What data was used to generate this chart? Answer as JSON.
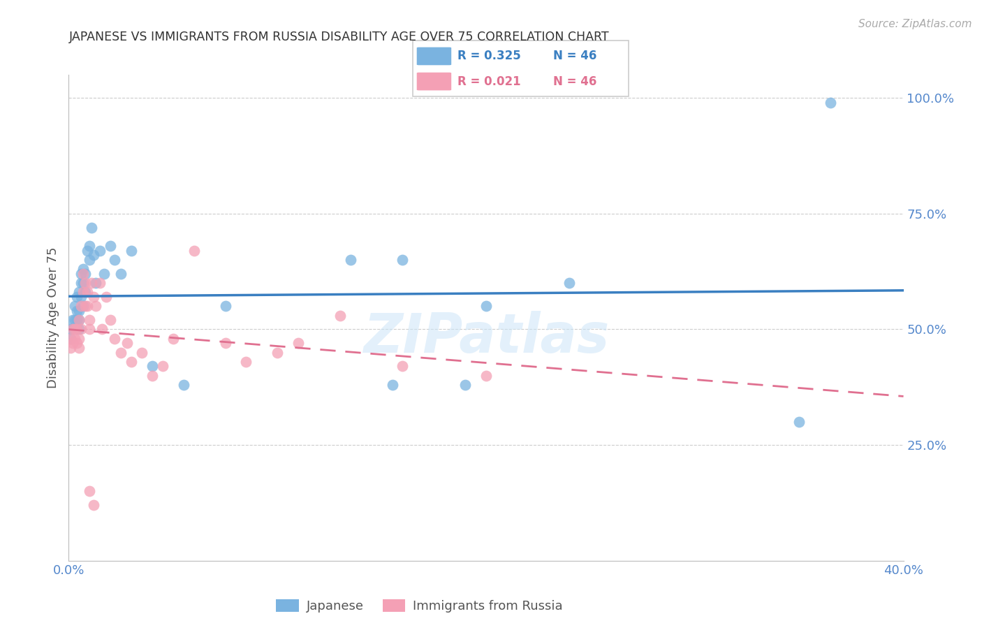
{
  "title": "JAPANESE VS IMMIGRANTS FROM RUSSIA DISABILITY AGE OVER 75 CORRELATION CHART",
  "source": "Source: ZipAtlas.com",
  "ylabel": "Disability Age Over 75",
  "xlim": [
    0.0,
    0.4
  ],
  "ylim": [
    0.0,
    1.05
  ],
  "yticks": [
    0.25,
    0.5,
    0.75,
    1.0
  ],
  "ytick_labels": [
    "25.0%",
    "50.0%",
    "75.0%",
    "100.0%"
  ],
  "xticks": [
    0.0,
    0.05,
    0.1,
    0.15,
    0.2,
    0.25,
    0.3,
    0.35,
    0.4
  ],
  "xtick_labels": [
    "0.0%",
    "",
    "",
    "",
    "",
    "",
    "",
    "",
    "40.0%"
  ],
  "legend_blue_r": "0.325",
  "legend_blue_n": "46",
  "legend_pink_r": "0.021",
  "legend_pink_n": "46",
  "blue_color": "#7ab3e0",
  "pink_color": "#f4a0b5",
  "line_blue": "#3a7fc1",
  "line_pink": "#e07090",
  "title_color": "#333333",
  "axis_label_color": "#555555",
  "tick_color": "#5588cc",
  "watermark": "ZIPatlas",
  "japanese_x": [
    0.001,
    0.001,
    0.002,
    0.002,
    0.003,
    0.003,
    0.003,
    0.004,
    0.004,
    0.004,
    0.004,
    0.005,
    0.005,
    0.005,
    0.005,
    0.006,
    0.006,
    0.006,
    0.007,
    0.007,
    0.007,
    0.008,
    0.008,
    0.009,
    0.01,
    0.01,
    0.011,
    0.012,
    0.013,
    0.015,
    0.017,
    0.02,
    0.022,
    0.025,
    0.03,
    0.04,
    0.055,
    0.075,
    0.16,
    0.2,
    0.24,
    0.19,
    0.155,
    0.135,
    0.35,
    0.365
  ],
  "japanese_y": [
    0.48,
    0.5,
    0.5,
    0.52,
    0.5,
    0.52,
    0.55,
    0.5,
    0.52,
    0.54,
    0.57,
    0.5,
    0.52,
    0.54,
    0.58,
    0.57,
    0.6,
    0.62,
    0.55,
    0.6,
    0.63,
    0.58,
    0.62,
    0.67,
    0.68,
    0.65,
    0.72,
    0.66,
    0.6,
    0.67,
    0.62,
    0.68,
    0.65,
    0.62,
    0.67,
    0.42,
    0.38,
    0.55,
    0.65,
    0.55,
    0.6,
    0.38,
    0.38,
    0.65,
    0.3,
    0.99
  ],
  "russia_x": [
    0.001,
    0.001,
    0.002,
    0.002,
    0.003,
    0.003,
    0.004,
    0.004,
    0.005,
    0.005,
    0.005,
    0.006,
    0.006,
    0.007,
    0.007,
    0.008,
    0.008,
    0.009,
    0.009,
    0.01,
    0.01,
    0.011,
    0.012,
    0.013,
    0.015,
    0.016,
    0.018,
    0.02,
    0.022,
    0.025,
    0.028,
    0.03,
    0.035,
    0.04,
    0.045,
    0.05,
    0.06,
    0.075,
    0.085,
    0.1,
    0.11,
    0.13,
    0.16,
    0.2,
    0.01,
    0.012
  ],
  "russia_y": [
    0.46,
    0.48,
    0.47,
    0.5,
    0.48,
    0.5,
    0.47,
    0.5,
    0.46,
    0.48,
    0.52,
    0.5,
    0.55,
    0.58,
    0.62,
    0.55,
    0.6,
    0.55,
    0.58,
    0.5,
    0.52,
    0.6,
    0.57,
    0.55,
    0.6,
    0.5,
    0.57,
    0.52,
    0.48,
    0.45,
    0.47,
    0.43,
    0.45,
    0.4,
    0.42,
    0.48,
    0.67,
    0.47,
    0.43,
    0.45,
    0.47,
    0.53,
    0.42,
    0.4,
    0.15,
    0.12
  ]
}
